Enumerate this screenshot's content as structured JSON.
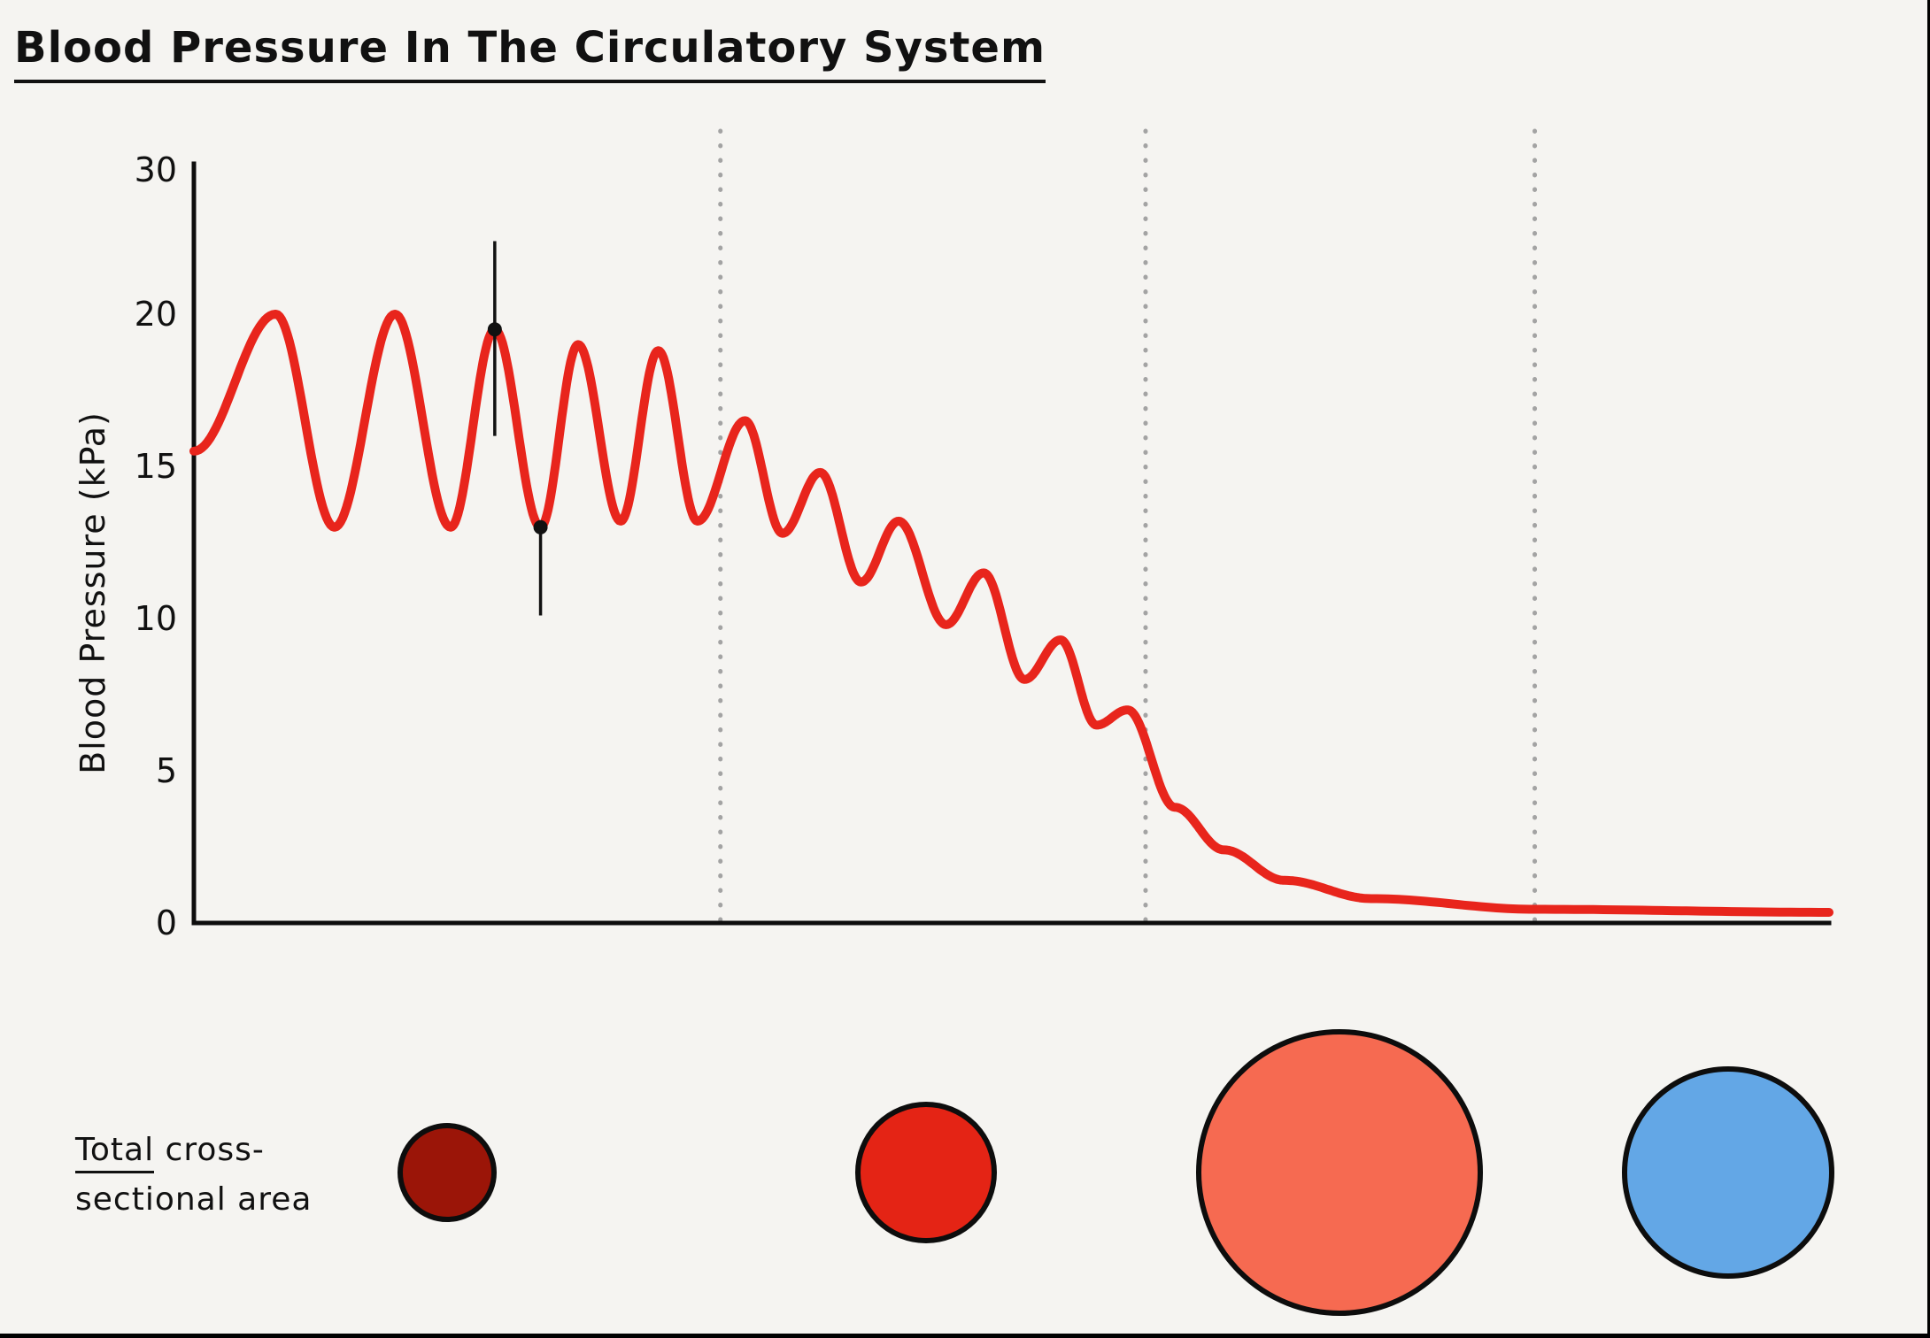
{
  "page": {
    "background": "#f5f4f1"
  },
  "chart_data": {
    "type": "line",
    "title": "Blood Pressure In The Circulatory System",
    "xlabel": "",
    "ylabel": "Blood Pressure (kPa)",
    "ylim": [
      0,
      30
    ],
    "y_ticks": [
      30,
      20,
      15,
      10,
      5,
      0
    ],
    "grid": "off",
    "curve_color": "#e8251c",
    "divider_color": "#a3a3a3",
    "axis_color": "#0d0d0d",
    "dividers_t": [
      0.322,
      0.582,
      0.82
    ],
    "series": [
      {
        "name": "blood-pressure",
        "points": [
          [
            0.0,
            15.5
          ],
          [
            0.05,
            20.0
          ],
          [
            0.086,
            13.0
          ],
          [
            0.123,
            20.0
          ],
          [
            0.157,
            13.0
          ],
          [
            0.184,
            19.5
          ],
          [
            0.212,
            13.0
          ],
          [
            0.235,
            19.0
          ],
          [
            0.261,
            13.2
          ],
          [
            0.284,
            18.8
          ],
          [
            0.308,
            13.2
          ],
          [
            0.337,
            16.5
          ],
          [
            0.36,
            12.8
          ],
          [
            0.383,
            14.8
          ],
          [
            0.408,
            11.2
          ],
          [
            0.431,
            13.2
          ],
          [
            0.46,
            9.8
          ],
          [
            0.483,
            11.5
          ],
          [
            0.508,
            8.0
          ],
          [
            0.53,
            9.3
          ],
          [
            0.552,
            6.5
          ],
          [
            0.571,
            7.0
          ],
          [
            0.6,
            3.8
          ],
          [
            0.63,
            2.4
          ],
          [
            0.667,
            1.4
          ],
          [
            0.72,
            0.8
          ],
          [
            0.82,
            0.45
          ],
          [
            1.0,
            0.35
          ]
        ]
      }
    ],
    "markers": [
      {
        "label": "systolic-peak",
        "t": 0.184,
        "value": 19.5,
        "line_from": 22.4,
        "line_to": 16.0
      },
      {
        "label": "diastolic-trough",
        "t": 0.212,
        "value": 13.0,
        "line_from": 13.0,
        "line_to": 10.1
      }
    ]
  },
  "cross_section": {
    "label_word_underlined": "Total",
    "label_line1_rest": " cross-",
    "label_line2": "sectional area",
    "circles": [
      {
        "color": "#9b1508",
        "radius": 56
      },
      {
        "color": "#e42415",
        "radius": 80
      },
      {
        "color": "#f66a51",
        "radius": 162
      },
      {
        "color": "#63a7e6",
        "radius": 120
      }
    ]
  }
}
